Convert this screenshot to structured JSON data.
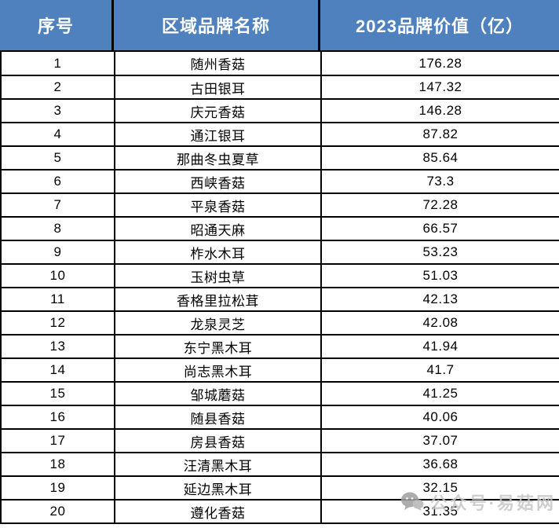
{
  "chart_data": {
    "type": "table",
    "title": "",
    "columns": [
      "序号",
      "区域品牌名称",
      "2023品牌价值（亿）"
    ],
    "rows": [
      {
        "rank": "1",
        "brand": "随州香菇",
        "value": "176.28"
      },
      {
        "rank": "2",
        "brand": "古田银耳",
        "value": "147.32"
      },
      {
        "rank": "3",
        "brand": "庆元香菇",
        "value": "146.28"
      },
      {
        "rank": "4",
        "brand": "通江银耳",
        "value": "87.82"
      },
      {
        "rank": "5",
        "brand": "那曲冬虫夏草",
        "value": "85.64"
      },
      {
        "rank": "6",
        "brand": "西峡香菇",
        "value": "73.3"
      },
      {
        "rank": "7",
        "brand": "平泉香菇",
        "value": "72.28"
      },
      {
        "rank": "8",
        "brand": "昭通天麻",
        "value": "66.57"
      },
      {
        "rank": "9",
        "brand": "柞水木耳",
        "value": "53.23"
      },
      {
        "rank": "10",
        "brand": "玉树虫草",
        "value": "51.03"
      },
      {
        "rank": "11",
        "brand": "香格里拉松茸",
        "value": "42.13"
      },
      {
        "rank": "12",
        "brand": "龙泉灵芝",
        "value": "42.08"
      },
      {
        "rank": "13",
        "brand": "东宁黑木耳",
        "value": "41.94"
      },
      {
        "rank": "14",
        "brand": "尚志黑木耳",
        "value": "41.7"
      },
      {
        "rank": "15",
        "brand": "邹城蘑菇",
        "value": "41.25"
      },
      {
        "rank": "16",
        "brand": "随县香菇",
        "value": "40.06"
      },
      {
        "rank": "17",
        "brand": "房县香菇",
        "value": "37.07"
      },
      {
        "rank": "18",
        "brand": "汪清黑木耳",
        "value": "36.68"
      },
      {
        "rank": "19",
        "brand": "延边黑木耳",
        "value": "32.15"
      },
      {
        "rank": "20",
        "brand": "遵化香菇",
        "value": "31.35"
      }
    ]
  },
  "watermark": {
    "text": "公众号·易菇网",
    "icon": "wechat-bubbles-icon"
  },
  "colors": {
    "header_bg": "#4e81bd",
    "header_text": "#ffffff",
    "border": "#000000",
    "cell_text": "#000000",
    "watermark_text": "#c7c7c7",
    "watermark_icon": "#9e9e9e"
  }
}
